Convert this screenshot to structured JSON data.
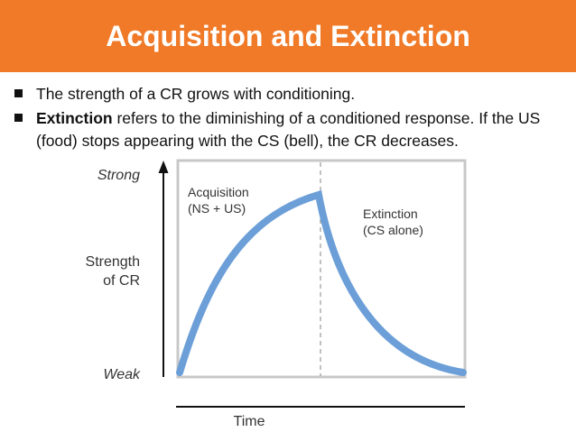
{
  "title": "Acquisition and Extinction",
  "bullets": [
    {
      "text": "The strength of a CR grows with conditioning."
    },
    {
      "bold": "Extinction",
      "text": " refers to the diminishing of a conditioned response. If the US (food) stops appearing with the CS (bell), the CR decreases."
    }
  ],
  "diagram": {
    "y_top_label": "Strong",
    "y_bottom_label": "Weak",
    "y_axis_label_line1": "Strength",
    "y_axis_label_line2": "of CR",
    "x_axis_label": "Time",
    "phase1_line1": "Acquisition",
    "phase1_line2": "(NS + US)",
    "phase2_line1": "Extinction",
    "phase2_line2": "(CS alone)",
    "curve_color": "#6c9fd8"
  }
}
